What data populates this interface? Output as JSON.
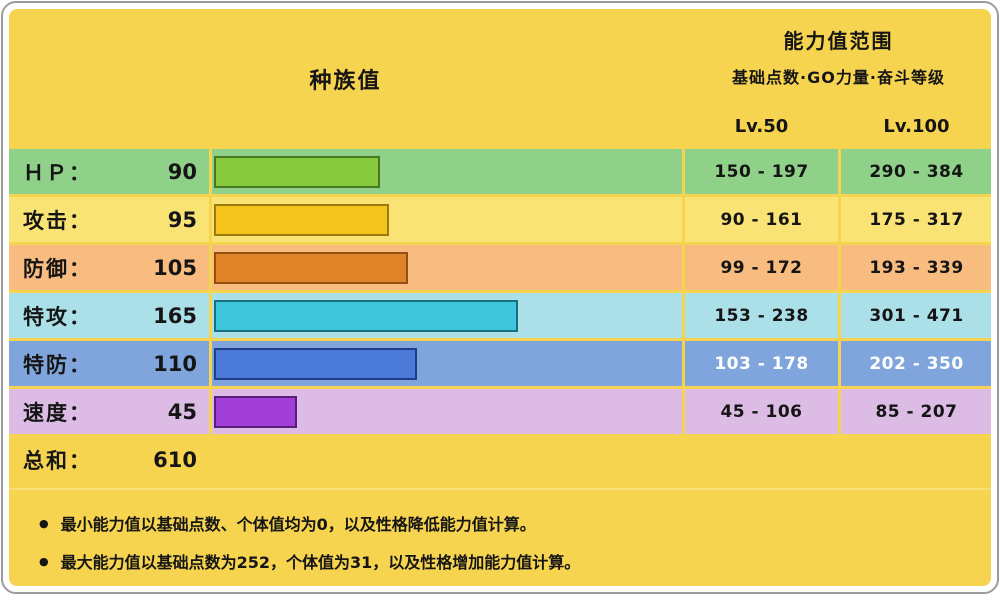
{
  "colors": {
    "page_bg": "#F6D450",
    "frame": "#FFFFFF",
    "frame_edge": "#9B9B9B",
    "text": "#151515"
  },
  "header": {
    "left_title": "种族值",
    "right_title": "能力值范围",
    "right_subtitle": "基础点数·GO力量·奋斗等级",
    "col_lv50": "Lv.50",
    "col_lv100": "Lv.100"
  },
  "bar_max": 255,
  "stats": [
    {
      "label": "ＨＰ：",
      "value": 90,
      "lv50": "150 - 197",
      "lv100": "290 - 384",
      "row_bg": "#8FD189",
      "bar_fill": "#86C93C",
      "bar_border": "#47761C",
      "range_color": "#151515"
    },
    {
      "label": "攻击：",
      "value": 95,
      "lv50": "90 - 161",
      "lv100": "175 - 317",
      "row_bg": "#F9E375",
      "bar_fill": "#F4C41C",
      "bar_border": "#9B7C0C",
      "range_color": "#151515"
    },
    {
      "label": "防御：",
      "value": 105,
      "lv50": "99 - 172",
      "lv100": "193 - 339",
      "row_bg": "#F9BC80",
      "bar_fill": "#DE8327",
      "bar_border": "#94510D",
      "range_color": "#151515"
    },
    {
      "label": "特攻：",
      "value": 165,
      "lv50": "153 - 238",
      "lv100": "301 - 471",
      "row_bg": "#ABE0E8",
      "bar_fill": "#3FC6DD",
      "bar_border": "#17707F",
      "range_color": "#151515"
    },
    {
      "label": "特防：",
      "value": 110,
      "lv50": "103 - 178",
      "lv100": "202 - 350",
      "row_bg": "#80A5DD",
      "bar_fill": "#4B7AD8",
      "bar_border": "#1E3E8C",
      "range_color": "#FFFFFF"
    },
    {
      "label": "速度：",
      "value": 45,
      "lv50": "45 - 106",
      "lv100": "85 - 207",
      "row_bg": "#DCBBE5",
      "bar_fill": "#A33FD9",
      "bar_border": "#571E7E",
      "range_color": "#151515"
    }
  ],
  "total": {
    "label": "总和：",
    "value": 610
  },
  "notes": [
    "最小能力值以基础点数、个体值均为0，以及性格降低能力值计算。",
    "最大能力值以基础点数为252，个体值为31，以及性格增加能力值计算。"
  ],
  "bullet_glyph": "●",
  "chart_data": {
    "type": "bar",
    "title": "种族值",
    "orientation": "horizontal",
    "categories": [
      "ＨＰ",
      "攻击",
      "防御",
      "特攻",
      "特防",
      "速度"
    ],
    "values": [
      90,
      95,
      105,
      165,
      110,
      45
    ],
    "total": 610,
    "xlim": [
      0,
      255
    ],
    "grid": false,
    "bar_colors": [
      "#86C93C",
      "#F4C41C",
      "#DE8327",
      "#3FC6DD",
      "#4B7AD8",
      "#A33FD9"
    ],
    "range_columns": {
      "Lv.50": [
        "150 - 197",
        "90 - 161",
        "99 - 172",
        "153 - 238",
        "103 - 178",
        "45 - 106"
      ],
      "Lv.100": [
        "290 - 384",
        "175 - 317",
        "193 - 339",
        "301 - 471",
        "202 - 350",
        "85 - 207"
      ]
    },
    "annotations": [
      "能力值范围",
      "基础点数·GO力量·奋斗等级",
      "最小能力值以基础点数、个体值均为0，以及性格降低能力值计算。",
      "最大能力值以基础点数为252，个体值为31，以及性格增加能力值计算。"
    ]
  }
}
